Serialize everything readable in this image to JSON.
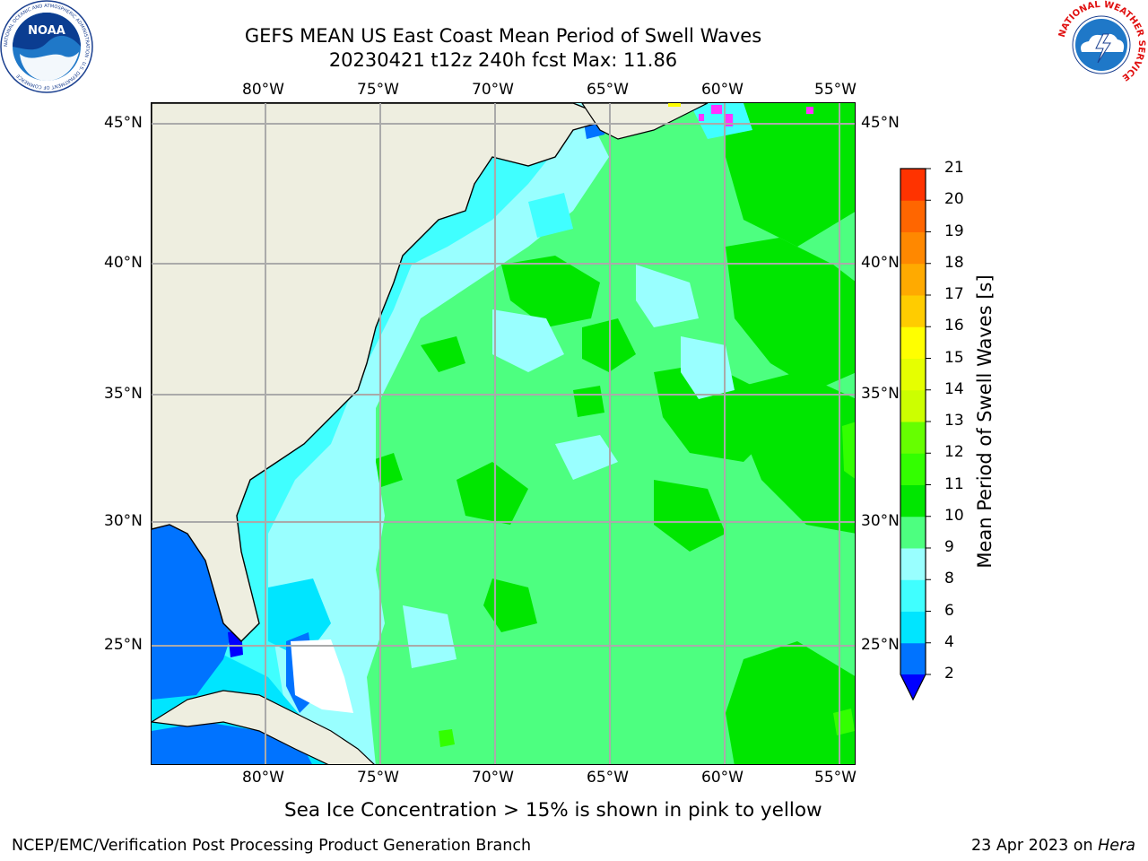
{
  "title": {
    "line1": "GEFS MEAN US East Coast Mean Period of Swell Waves",
    "line2": "20230421 t12z 240h fcst   Max: 11.86"
  },
  "axes": {
    "lon_labels": [
      "80°W",
      "75°W",
      "70°W",
      "65°W",
      "60°W",
      "55°W"
    ],
    "lat_labels": [
      "45°N",
      "40°N",
      "35°N",
      "30°N",
      "25°N"
    ]
  },
  "colorbar": {
    "label": "Mean Period of Swell Waves [s]",
    "ticks": [
      "2",
      "4",
      "6",
      "8",
      "9",
      "10",
      "11",
      "12",
      "13",
      "14",
      "15",
      "16",
      "17",
      "18",
      "19",
      "20",
      "21"
    ],
    "colors": [
      "#0073ff",
      "#00e5ff",
      "#40ffff",
      "#99ffff",
      "#4dff80",
      "#00e600",
      "#33ff00",
      "#66ff00",
      "#ccff00",
      "#e6ff00",
      "#ffff00",
      "#ffcc00",
      "#ffaa00",
      "#ff8800",
      "#ff6600",
      "#ff3300",
      "#ff0000"
    ],
    "under_color": "#0000ff"
  },
  "note": "Sea Ice Concentration > 15% is shown in pink to yellow",
  "footer": {
    "left": "NCEP/EMC/Verification Post Processing Product Generation Branch",
    "right_date": "23 Apr 2023 on ",
    "right_host": "Hera"
  },
  "logos": {
    "noaa_text": "NOAA",
    "noaa_ring": "NATIONAL OCEANIC AND ATMOSPHERIC ADMINISTRATION · U.S. DEPARTMENT OF COMMERCE",
    "nws_ring": "NATIONAL WEATHER SERVICE"
  }
}
